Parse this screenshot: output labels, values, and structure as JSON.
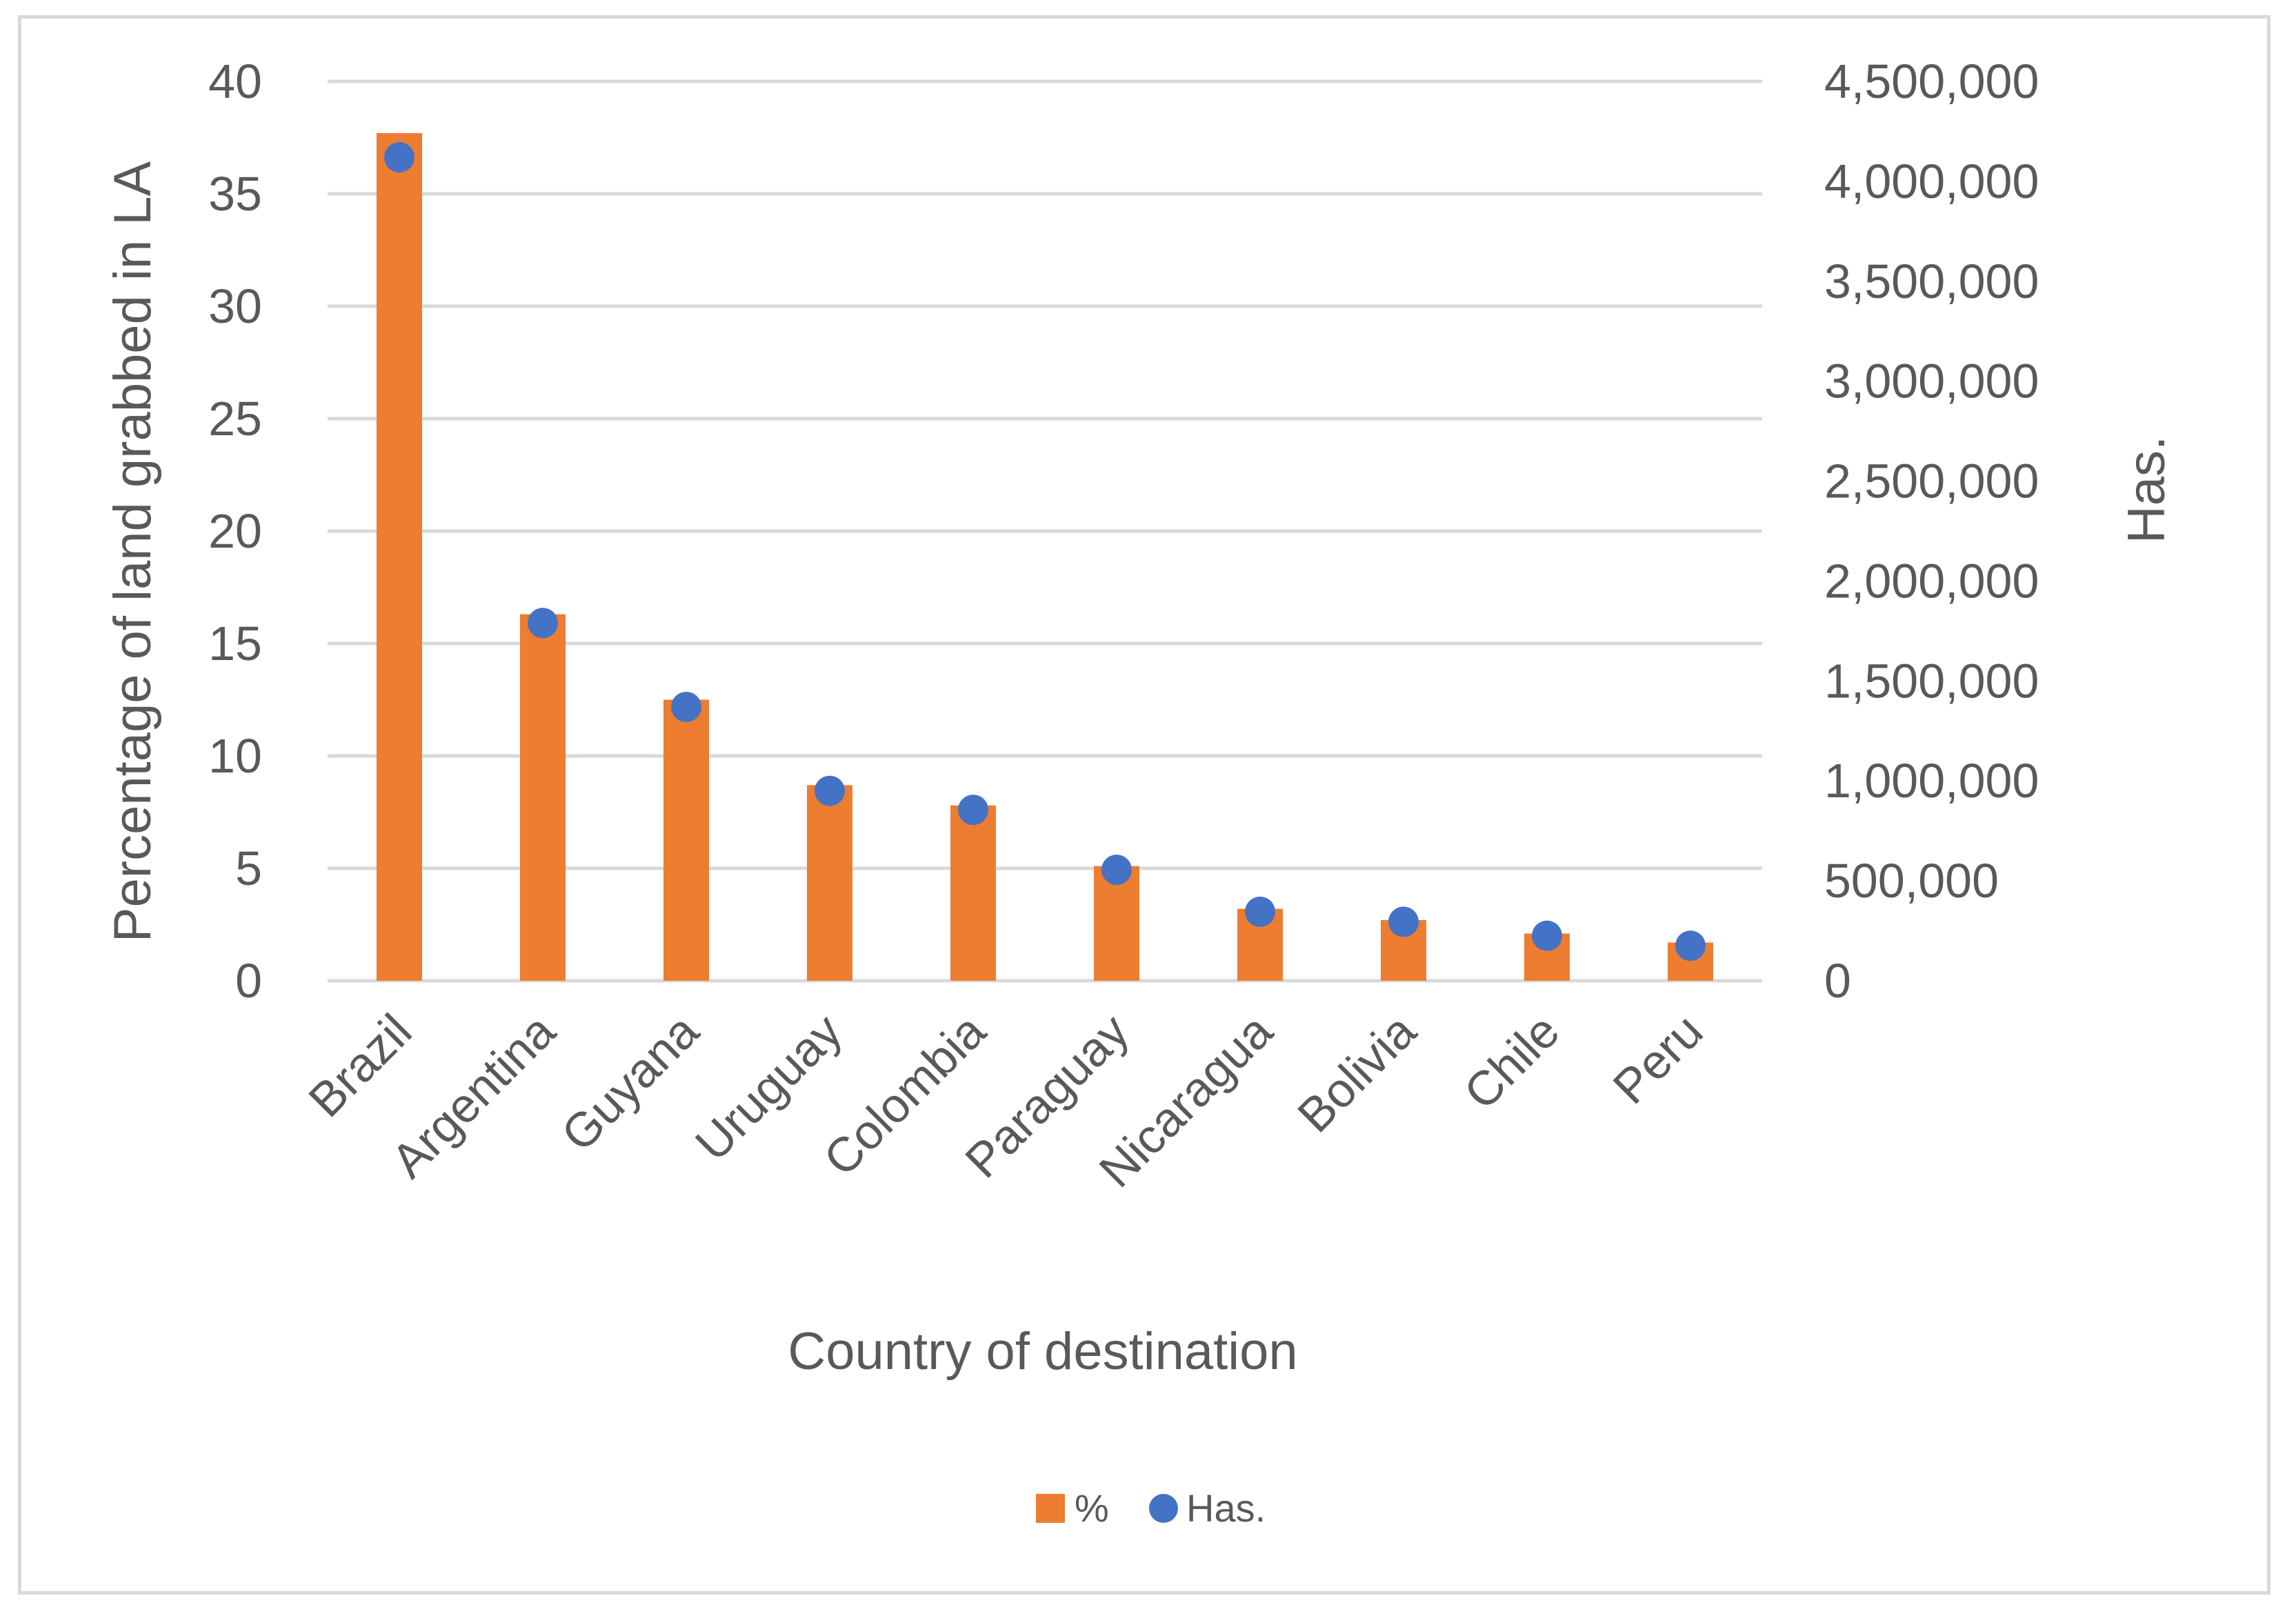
{
  "chart_data": {
    "type": "bar",
    "categories": [
      "Brazil",
      "Argentina",
      "Guyana",
      "Uruguay",
      "Colombia",
      "Paraguay",
      "Nicaragua",
      "Bolivia",
      "Chile",
      "Peru"
    ],
    "series": [
      {
        "name": "%",
        "kind": "bar",
        "axis": "left",
        "color": "#ed7d31",
        "values": [
          37.7,
          16.3,
          12.5,
          8.7,
          7.8,
          5.1,
          3.2,
          2.7,
          2.1,
          1.7
        ]
      },
      {
        "name": "Has.",
        "kind": "scatter",
        "axis": "right",
        "color": "#4472c4",
        "values": [
          4120000,
          1790000,
          1370000,
          950000,
          855000,
          555000,
          345000,
          295000,
          225000,
          175000
        ]
      }
    ],
    "xlabel": "Country of destination",
    "ylabel": "Percentage of land grabbed in LA",
    "y2label": "Has.",
    "ylim": [
      0,
      40
    ],
    "y2lim": [
      0,
      4500000
    ],
    "yticks": [
      "0",
      "5",
      "10",
      "15",
      "20",
      "25",
      "30",
      "35",
      "40"
    ],
    "y2ticks": [
      "0",
      "500,000",
      "1,000,000",
      "1,500,000",
      "2,000,000",
      "2,500,000",
      "3,000,000",
      "3,500,000",
      "4,000,000",
      "4,500,000"
    ],
    "grid": true,
    "legend_position": "bottom-center",
    "legend": [
      "%",
      "Has."
    ]
  }
}
